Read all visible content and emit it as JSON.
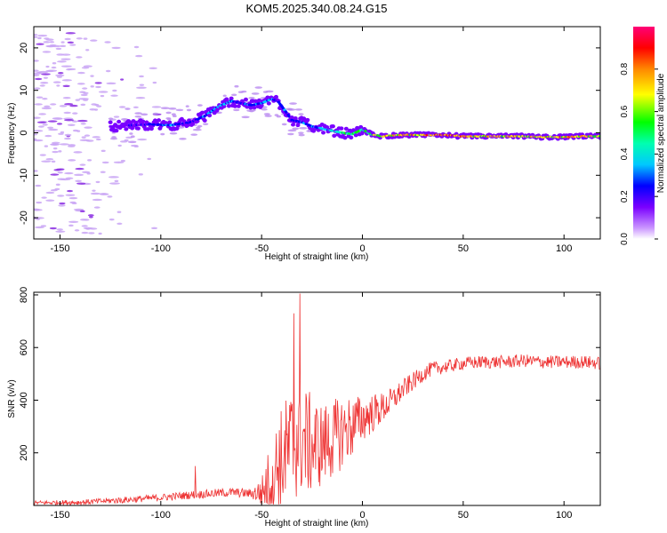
{
  "figure_title": "KOM5.2025.340.08.24.G15",
  "chart_data": [
    {
      "type": "heatmap",
      "title": "",
      "xlabel": "Height of straight line (km)",
      "ylabel": "Frequency (Hz)",
      "xlim": [
        -163,
        118
      ],
      "ylim": [
        -25,
        25
      ],
      "x_ticks": [
        -150,
        -100,
        -50,
        0,
        50,
        100
      ],
      "y_ticks": [
        -20,
        -10,
        0,
        10,
        20
      ],
      "colorbar": {
        "label": "Normalized spectral amplitude",
        "range": [
          0,
          1
        ],
        "ticks": [
          0.0,
          0.2,
          0.4,
          0.6,
          0.8
        ],
        "colormap": "rainbow (lavender -> violet -> blue -> cyan -> green -> yellow -> orange -> red -> magenta)"
      },
      "ridge": {
        "description": "dominant frequency vs height",
        "x": [
          -125,
          -115,
          -105,
          -95,
          -85,
          -78,
          -72,
          -65,
          -60,
          -55,
          -50,
          -45,
          -42,
          -38,
          -35,
          -30,
          -25,
          -20,
          -15,
          -10,
          -5,
          0,
          5,
          10,
          20,
          30,
          40,
          50,
          60,
          70,
          80,
          90,
          100,
          110,
          118
        ],
        "y": [
          1.5,
          1.8,
          2.0,
          1.8,
          2.5,
          4.0,
          6.0,
          7.5,
          7.0,
          6.5,
          7.0,
          8.0,
          7.5,
          5.0,
          3.0,
          2.5,
          1.5,
          1.0,
          0.5,
          0.0,
          -0.3,
          0.8,
          -0.5,
          -0.8,
          -0.5,
          -0.5,
          -0.5,
          -0.8,
          -0.8,
          -0.8,
          -0.8,
          -1.0,
          -1.0,
          -0.8,
          -0.8
        ],
        "amplitude": [
          0.2,
          0.25,
          0.3,
          0.35,
          0.3,
          0.35,
          0.4,
          0.35,
          0.3,
          0.35,
          0.4,
          0.35,
          0.3,
          0.35,
          0.3,
          0.35,
          0.35,
          0.4,
          0.45,
          0.6,
          0.65,
          0.55,
          0.65,
          0.75,
          0.85,
          0.9,
          0.9,
          0.85,
          0.8,
          0.8,
          0.75,
          0.8,
          0.85,
          0.8,
          0.75
        ]
      }
    },
    {
      "type": "line",
      "title": "",
      "xlabel": "Height of straight line (km)",
      "ylabel": "SNR (v/v)",
      "xlim": [
        -163,
        118
      ],
      "ylim": [
        0,
        810
      ],
      "x_ticks": [
        -150,
        -100,
        -50,
        0,
        50,
        100
      ],
      "y_ticks": [
        200,
        400,
        600,
        800
      ],
      "color": "#ee3333",
      "envelope": {
        "x": [
          -163,
          -140,
          -120,
          -100,
          -85,
          -75,
          -65,
          -55,
          -50,
          -45,
          -40,
          -35,
          -32,
          -30,
          -25,
          -20,
          -15,
          -10,
          -5,
          0,
          5,
          10,
          15,
          20,
          25,
          30,
          35,
          40,
          50,
          60,
          70,
          80,
          90,
          100,
          110,
          118
        ],
        "y": [
          10,
          12,
          20,
          30,
          40,
          45,
          50,
          45,
          50,
          110,
          180,
          220,
          260,
          250,
          230,
          230,
          250,
          280,
          300,
          330,
          350,
          370,
          400,
          440,
          470,
          500,
          520,
          525,
          540,
          545,
          545,
          550,
          545,
          545,
          545,
          540
        ]
      },
      "noise_amplitude": {
        "x": [
          -163,
          -55,
          -50,
          -45,
          -40,
          -35,
          -30,
          -25,
          -20,
          -15,
          -10,
          -5,
          0,
          10,
          20,
          30,
          40,
          118
        ],
        "y": [
          8,
          18,
          60,
          150,
          200,
          240,
          220,
          190,
          160,
          150,
          140,
          120,
          90,
          60,
          40,
          30,
          25,
          25
        ]
      },
      "spikes": [
        {
          "x": -31,
          "y": 805
        },
        {
          "x": -83,
          "y": 150
        },
        {
          "x": -34,
          "y": 730
        }
      ]
    }
  ]
}
